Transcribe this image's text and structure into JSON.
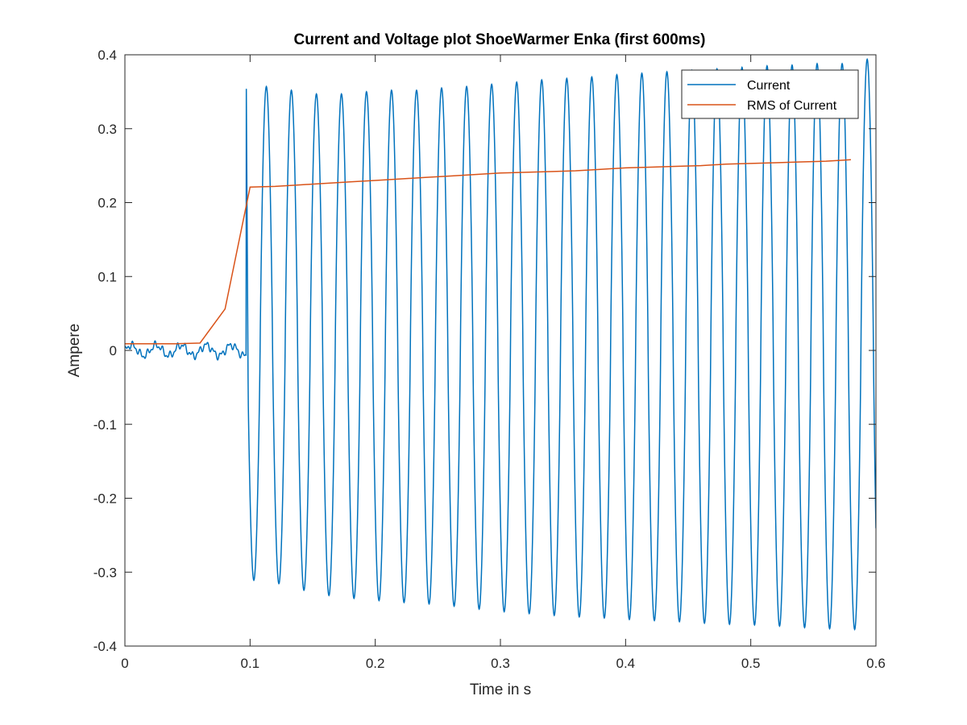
{
  "chart_data": {
    "type": "line",
    "title": "Current and Voltage plot ShoeWarmer Enka (first 600ms)",
    "xlabel": "Time in s",
    "ylabel": "Ampere",
    "xlim": [
      0,
      0.6
    ],
    "ylim": [
      -0.4,
      0.4
    ],
    "x_ticks": [
      0,
      0.1,
      0.2,
      0.3,
      0.4,
      0.5,
      0.6
    ],
    "x_tick_labels": [
      "0",
      "0.1",
      "0.2",
      "0.3",
      "0.4",
      "0.5",
      "0.6"
    ],
    "y_ticks": [
      -0.4,
      -0.3,
      -0.2,
      -0.1,
      0,
      0.1,
      0.2,
      0.3,
      0.4
    ],
    "y_tick_labels": [
      "-0.4",
      "-0.3",
      "-0.2",
      "-0.1",
      "0",
      "0.1",
      "0.2",
      "0.3",
      "0.4"
    ],
    "grid": false,
    "legend_position": "top-right",
    "series": [
      {
        "name": "Current",
        "color": "#0072BD",
        "description_points": {
          "switch_on_time": 0.097,
          "frequency_hz": 50,
          "pre_switch_noise_amplitude": 0.012,
          "cycle_peaks": [
            [
              0.113,
              0.357,
              -0.311
            ],
            [
              0.133,
              0.352,
              -0.32
            ],
            [
              0.153,
              0.347,
              -0.329
            ],
            [
              0.173,
              0.347,
              -0.334
            ],
            [
              0.193,
              0.35,
              -0.337
            ],
            [
              0.213,
              0.352,
              -0.34
            ],
            [
              0.233,
              0.352,
              -0.342
            ],
            [
              0.253,
              0.355,
              -0.344
            ],
            [
              0.273,
              0.357,
              -0.348
            ],
            [
              0.293,
              0.36,
              -0.352
            ],
            [
              0.313,
              0.363,
              -0.355
            ],
            [
              0.333,
              0.366,
              -0.357
            ],
            [
              0.353,
              0.368,
              -0.36
            ],
            [
              0.373,
              0.37,
              -0.361
            ],
            [
              0.393,
              0.373,
              -0.363
            ],
            [
              0.413,
              0.375,
              -0.365
            ],
            [
              0.433,
              0.377,
              -0.366
            ],
            [
              0.453,
              0.379,
              -0.368
            ],
            [
              0.473,
              0.381,
              -0.37
            ],
            [
              0.493,
              0.383,
              -0.371
            ],
            [
              0.513,
              0.385,
              -0.372
            ],
            [
              0.533,
              0.386,
              -0.374
            ],
            [
              0.553,
              0.388,
              -0.376
            ],
            [
              0.573,
              0.388,
              -0.377
            ],
            [
              0.593,
              0.394,
              -0.378
            ]
          ]
        }
      },
      {
        "name": "RMS of Current",
        "color": "#D95319",
        "x": [
          0,
          0.02,
          0.04,
          0.06,
          0.08,
          0.1,
          0.12,
          0.14,
          0.16,
          0.18,
          0.2,
          0.22,
          0.24,
          0.26,
          0.28,
          0.3,
          0.32,
          0.34,
          0.36,
          0.38,
          0.4,
          0.42,
          0.44,
          0.46,
          0.48,
          0.5,
          0.52,
          0.54,
          0.56,
          0.58
        ],
        "y": [
          0.009,
          0.009,
          0.009,
          0.01,
          0.056,
          0.221,
          0.222,
          0.224,
          0.226,
          0.228,
          0.23,
          0.232,
          0.234,
          0.236,
          0.238,
          0.24,
          0.241,
          0.242,
          0.243,
          0.245,
          0.247,
          0.248,
          0.249,
          0.25,
          0.252,
          0.253,
          0.254,
          0.255,
          0.256,
          0.258
        ]
      }
    ]
  }
}
